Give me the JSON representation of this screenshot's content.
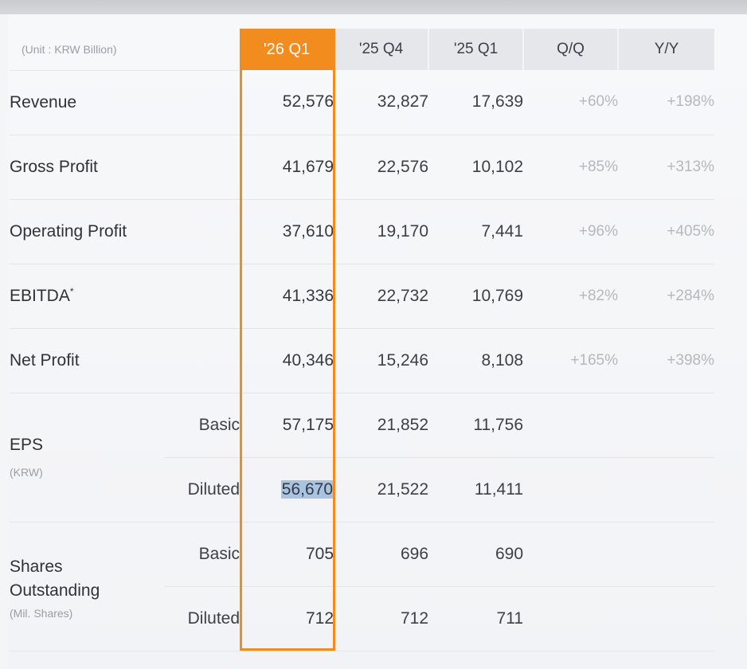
{
  "table": {
    "unit_label": "(Unit : KRW Billion)",
    "columns": [
      "'26 Q1",
      "'25 Q4",
      "'25 Q1",
      "Q/Q",
      "Y/Y"
    ],
    "highlight_color": "#f28c1e",
    "rows": [
      {
        "label": "Revenue",
        "values": [
          "52,576",
          "32,827",
          "17,639"
        ],
        "qq": "+60%",
        "yy": "+198%"
      },
      {
        "label": "Gross Profit",
        "values": [
          "41,679",
          "22,576",
          "10,102"
        ],
        "qq": "+85%",
        "yy": "+313%"
      },
      {
        "label": "Operating Profit",
        "values": [
          "37,610",
          "19,170",
          "7,441"
        ],
        "qq": "+96%",
        "yy": "+405%"
      },
      {
        "label": "EBITDA",
        "label_sup": "*",
        "values": [
          "41,336",
          "22,732",
          "10,769"
        ],
        "qq": "+82%",
        "yy": "+284%"
      },
      {
        "label": "Net Profit",
        "values": [
          "40,346",
          "15,246",
          "8,108"
        ],
        "qq": "+165%",
        "yy": "+398%"
      }
    ],
    "eps": {
      "label": "EPS",
      "unit": "(KRW)",
      "basic_label": "Basic",
      "basic": [
        "57,175",
        "21,852",
        "11,756"
      ],
      "diluted_label": "Diluted",
      "diluted": [
        "56,670",
        "21,522",
        "11,411"
      ]
    },
    "shares": {
      "label_line1": "Shares",
      "label_line2": "Outstanding",
      "unit": "(Mil. Shares)",
      "basic_label": "Basic",
      "basic": [
        "705",
        "696",
        "690"
      ],
      "diluted_label": "Diluted",
      "diluted": [
        "712",
        "712",
        "711"
      ]
    }
  }
}
